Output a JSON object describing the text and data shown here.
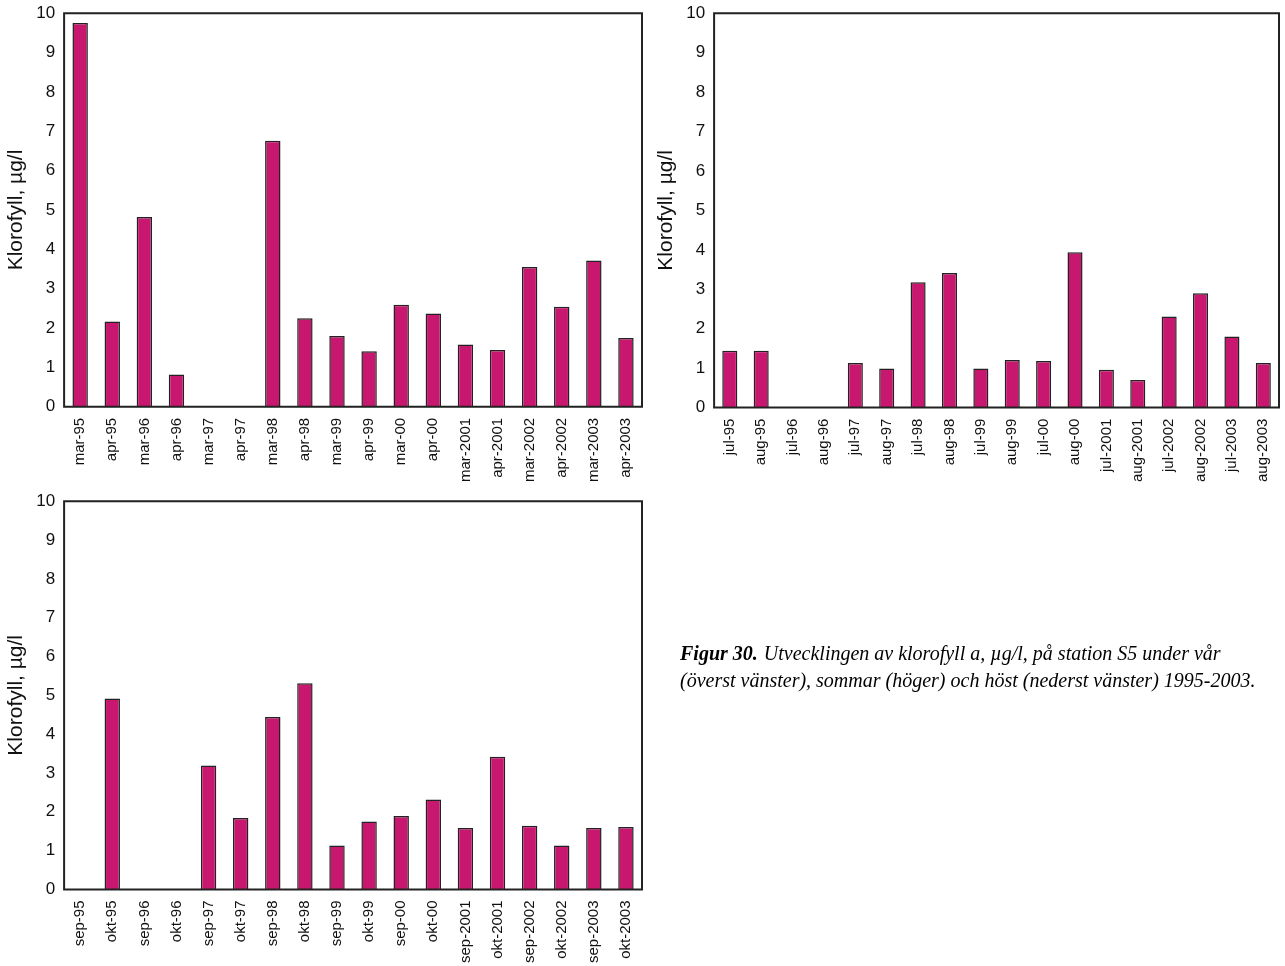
{
  "chart_data": [
    {
      "type": "bar",
      "ylabel": "Klorofyll, µg/l",
      "categories": [
        "mar-95",
        "apr-95",
        "mar-96",
        "apr-96",
        "mar-97",
        "apr-97",
        "mar-98",
        "apr-98",
        "mar-99",
        "apr-99",
        "mar-00",
        "apr-00",
        "mar-2001",
        "apr-2001",
        "mar-2002",
        "apr-2002",
        "mar-2003",
        "apr-2003"
      ],
      "values": [
        9.75,
        2.17,
        4.82,
        0.82,
        null,
        null,
        6.76,
        2.25,
        1.8,
        1.41,
        2.59,
        2.37,
        1.58,
        1.44,
        3.55,
        2.54,
        3.72,
        1.75
      ],
      "color": "#c8176f",
      "ylim": [
        0,
        10
      ],
      "yticks": [
        0,
        1,
        2,
        3,
        4,
        5,
        6,
        7,
        8,
        9,
        10
      ]
    },
    {
      "type": "bar",
      "ylabel": "Klorofyll, µg/l",
      "categories": [
        "jul-95",
        "aug-95",
        "jul-96",
        "aug-96",
        "jul-97",
        "aug-97",
        "jul-98",
        "aug-98",
        "jul-99",
        "aug-99",
        "jul-00",
        "aug-00",
        "jul-2001",
        "aug-2001",
        "jul-2002",
        "aug-2002",
        "jul-2003",
        "aug-2003"
      ],
      "values": [
        1.44,
        1.44,
        null,
        null,
        1.13,
        0.99,
        3.18,
        3.41,
        0.99,
        1.21,
        1.18,
        3.94,
        0.96,
        0.7,
        2.31,
        2.9,
        1.8,
        1.13
      ],
      "color": "#c8176f",
      "ylim": [
        0,
        10
      ],
      "yticks": [
        0,
        1,
        2,
        3,
        4,
        5,
        6,
        7,
        8,
        9,
        10
      ]
    },
    {
      "type": "bar",
      "ylabel": "Klorofyll, µg/l",
      "categories": [
        "sep-95",
        "okt-95",
        "sep-96",
        "okt-96",
        "sep-97",
        "okt-97",
        "sep-98",
        "okt-98",
        "sep-99",
        "okt-99",
        "sep-00",
        "okt-00",
        "sep-2001",
        "okt-2001",
        "sep-2002",
        "okt-2002",
        "sep-2003",
        "okt-2003"
      ],
      "values": [
        null,
        4.92,
        null,
        null,
        3.19,
        1.84,
        4.44,
        5.31,
        1.13,
        1.75,
        1.89,
        2.32,
        1.58,
        3.42,
        1.64,
        1.13,
        1.58,
        1.61
      ],
      "color": "#c8176f",
      "ylim": [
        0,
        10
      ],
      "yticks": [
        0,
        1,
        2,
        3,
        4,
        5,
        6,
        7,
        8,
        9,
        10
      ]
    },
    {
      "type": "other",
      "title": "Figur 30.",
      "annotations": [
        "Utvecklingen av klorofyll a, µg/l, på station S5 under vår (överst vänster), sommar (höger) och höst (nederst vänster) 1995-2003."
      ]
    }
  ]
}
